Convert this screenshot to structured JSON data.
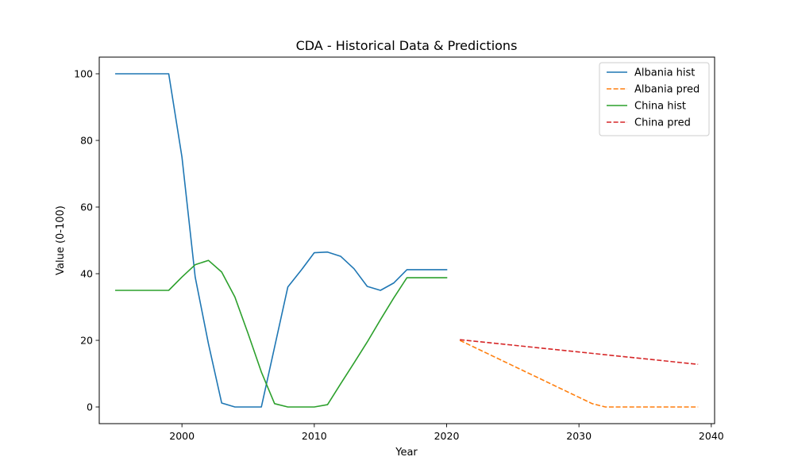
{
  "chart_data": {
    "type": "line",
    "title": "CDA - Historical Data & Predictions",
    "xlabel": "Year",
    "ylabel": "Value (0-100)",
    "xlim": [
      1993.75,
      2040.25
    ],
    "ylim": [
      -5,
      105
    ],
    "xticks": [
      2000,
      2010,
      2020,
      2030,
      2040
    ],
    "yticks": [
      0,
      20,
      40,
      60,
      80,
      100
    ],
    "grid": false,
    "legend_position": "top-right",
    "series": [
      {
        "name": "Albania hist",
        "color": "#1f77b4",
        "style": "solid",
        "x": [
          1995,
          1996,
          1997,
          1998,
          1999,
          2000,
          2001,
          2002,
          2003,
          2004,
          2005,
          2006,
          2007,
          2008,
          2009,
          2010,
          2011,
          2012,
          2013,
          2014,
          2015,
          2016,
          2017,
          2018,
          2019,
          2020
        ],
        "y": [
          100,
          100,
          100,
          100,
          100,
          75,
          39,
          19,
          1.2,
          0,
          0,
          0,
          18,
          36,
          41,
          46.3,
          46.5,
          45.2,
          41.5,
          36.2,
          35,
          37.2,
          41.2,
          41.2,
          41.2,
          41.2
        ]
      },
      {
        "name": "Albania pred",
        "color": "#ff7f0e",
        "style": "dashed",
        "x": [
          2021,
          2022,
          2023,
          2024,
          2025,
          2026,
          2027,
          2028,
          2029,
          2030,
          2031,
          2032,
          2033,
          2034,
          2035,
          2036,
          2037,
          2038,
          2039
        ],
        "y": [
          20,
          18.1,
          16.2,
          14.3,
          12.4,
          10.5,
          8.6,
          6.7,
          4.8,
          2.9,
          1,
          0,
          0,
          0,
          0,
          0,
          0,
          0,
          0
        ]
      },
      {
        "name": "China hist",
        "color": "#2ca02c",
        "style": "solid",
        "x": [
          1995,
          1996,
          1997,
          1998,
          1999,
          2000,
          2001,
          2002,
          2003,
          2004,
          2005,
          2006,
          2007,
          2008,
          2009,
          2010,
          2011,
          2012,
          2013,
          2014,
          2015,
          2016,
          2017,
          2018,
          2019,
          2020
        ],
        "y": [
          35,
          35,
          35,
          35,
          35,
          39,
          42.7,
          44,
          40.5,
          33,
          22,
          10.5,
          1,
          0,
          0,
          0,
          0.7,
          7,
          13.2,
          19.5,
          26.2,
          32.7,
          38.8,
          38.8,
          38.8,
          38.8
        ]
      },
      {
        "name": "China pred",
        "color": "#d62728",
        "style": "dashed",
        "x": [
          2021,
          2039
        ],
        "y": [
          20.2,
          12.8
        ]
      }
    ]
  }
}
